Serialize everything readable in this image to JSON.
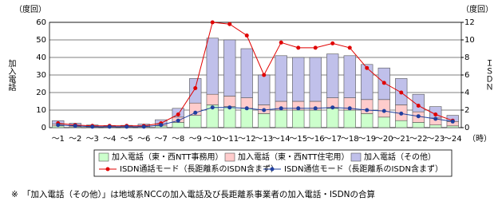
{
  "chart_data": {
    "type": "bar_line",
    "y_title": "加入電話",
    "y_unit": "（度回）",
    "y2_title": "ＩＳＤＮ",
    "y2_unit": "（度回）",
    "x_unit": "（時）",
    "categories": [
      "～1",
      "～2",
      "～3",
      "～4",
      "～5",
      "～6",
      "～7",
      "～8",
      "～9",
      "～10",
      "～11",
      "～12",
      "～13",
      "～14",
      "～15",
      "～16",
      "～17",
      "～18",
      "～19",
      "～20",
      "～21",
      "～22",
      "～23",
      "～24"
    ],
    "series": [
      {
        "name": "加入電話（東・西NTT事務用）",
        "color": "#ccffcc",
        "kind": "bar",
        "values": [
          1,
          0.5,
          0.3,
          0.3,
          0.3,
          0.4,
          1,
          3,
          7,
          13,
          12,
          11,
          8,
          10,
          10,
          10,
          11,
          10,
          8,
          6,
          4,
          3,
          1.5,
          1
        ]
      },
      {
        "name": "加入電話（東・西NTT住宅用）",
        "color": "#ffcccc",
        "kind": "bar",
        "values": [
          1,
          0.7,
          0.4,
          0.3,
          0.3,
          0.5,
          1,
          3,
          7,
          6,
          6,
          6,
          5,
          5,
          5,
          5,
          6,
          7,
          8,
          10,
          9,
          6,
          4,
          2.5
        ]
      },
      {
        "name": "加入電話（その他）",
        "color": "#c0c0ea",
        "kind": "bar",
        "values": [
          2,
          1.3,
          0.8,
          0.6,
          0.7,
          1.1,
          2.5,
          5,
          14,
          32,
          32,
          28,
          17,
          26,
          25,
          25,
          25,
          24,
          20,
          18,
          15,
          10,
          6.5,
          3.5
        ]
      },
      {
        "name": "ISDN通話モード（長距離系のISDN含まず）",
        "color": "#e00000",
        "kind": "line",
        "axis": "y2",
        "values": [
          0.5,
          0.3,
          0.2,
          0.2,
          0.2,
          0.2,
          0.5,
          1.5,
          4.5,
          12,
          11.8,
          10.5,
          6,
          9.7,
          9.1,
          9.1,
          9.6,
          9.1,
          6.8,
          5.1,
          4,
          2.5,
          1.5,
          0.8
        ]
      },
      {
        "name": "ISDN通信モード（長距離系のISDN含まず）",
        "color": "#1f3f9f",
        "kind": "line",
        "axis": "y2",
        "values": [
          0.3,
          0.2,
          0.1,
          0.1,
          0.1,
          0.1,
          0.3,
          0.8,
          1.7,
          2.3,
          2.3,
          2.2,
          2,
          2.2,
          2.2,
          2.2,
          2.3,
          2.2,
          2,
          1.9,
          1.6,
          1.3,
          1,
          0.7
        ]
      }
    ],
    "ylim": [
      0,
      60
    ],
    "yticks": [
      0,
      10,
      20,
      30,
      40,
      50,
      60
    ],
    "y2lim": [
      0,
      12
    ],
    "y2ticks": [
      0,
      2,
      4,
      6,
      8,
      10,
      12
    ],
    "grid": true,
    "footnote": "※　「加入電話（その他）」は地域系NCCの加入電話及び長距離系事業者の加入電話・ISDNの合算"
  }
}
